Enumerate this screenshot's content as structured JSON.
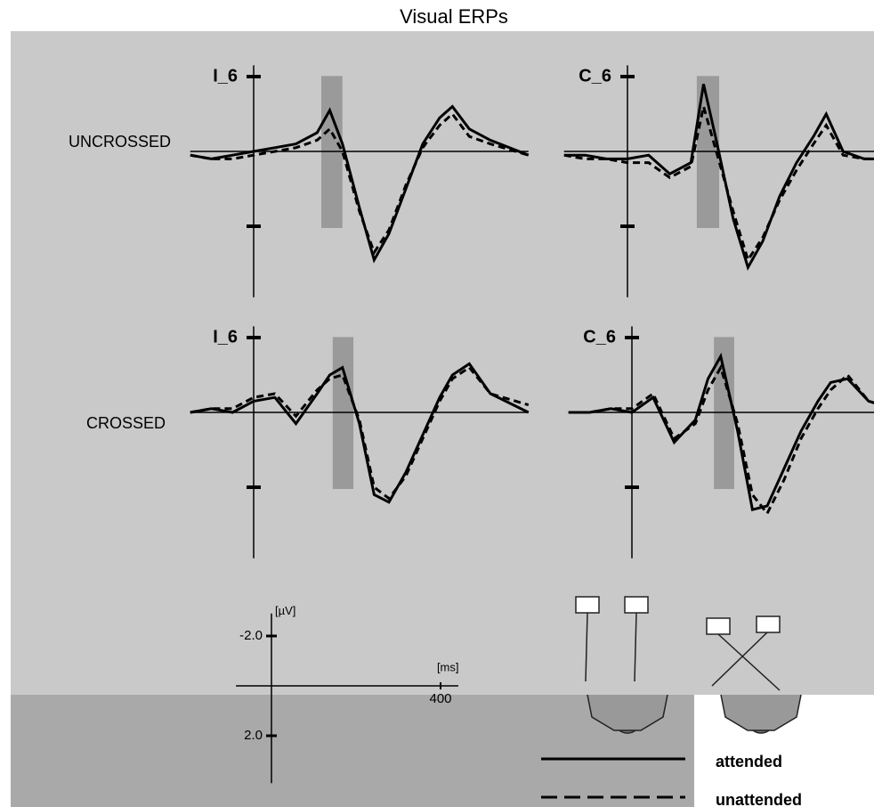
{
  "title": "Visual ERPs",
  "row_labels": [
    "UNCROSSED",
    "CROSSED"
  ],
  "chart_data": [
    {
      "type": "line",
      "title": "I_6",
      "xlim": [
        -150,
        650
      ],
      "ylim": [
        -2.3,
        3.9
      ],
      "yticks": [
        -2,
        2
      ],
      "highlight": [
        160,
        210
      ],
      "x": [
        -150,
        -100,
        -50,
        0,
        50,
        100,
        150,
        180,
        210,
        250,
        285,
        320,
        360,
        400,
        440,
        470,
        510,
        560,
        650
      ],
      "series": [
        {
          "name": "attended",
          "color": "#000000",
          "style": "solid",
          "values": [
            0.1,
            0.2,
            0.1,
            0,
            -0.1,
            -0.2,
            -0.5,
            -1.1,
            -0.2,
            1.5,
            2.9,
            2.2,
            1.0,
            -0.2,
            -0.9,
            -1.2,
            -0.6,
            -0.3,
            0.1
          ]
        },
        {
          "name": "unattended",
          "color": "#000000",
          "style": "dashed",
          "values": [
            0.1,
            0.2,
            0.2,
            0.1,
            0,
            -0.1,
            -0.3,
            -0.6,
            0,
            1.6,
            2.7,
            2.1,
            0.9,
            -0.1,
            -0.7,
            -1.0,
            -0.4,
            -0.2,
            0.1
          ]
        }
      ]
    },
    {
      "type": "line",
      "title": "C_6",
      "xlim": [
        -150,
        650
      ],
      "ylim": [
        -2.3,
        3.9
      ],
      "yticks": [
        -2,
        2
      ],
      "highlight": [
        164,
        217
      ],
      "x": [
        -150,
        -100,
        -50,
        0,
        50,
        100,
        150,
        180,
        210,
        250,
        285,
        320,
        360,
        400,
        440,
        470,
        510,
        560,
        650
      ],
      "series": [
        {
          "name": "attended",
          "color": "#000000",
          "style": "solid",
          "values": [
            0.1,
            0.1,
            0.2,
            0.2,
            0.1,
            0.6,
            0.3,
            -1.8,
            -0.3,
            1.8,
            3.1,
            2.4,
            1.2,
            0.3,
            -0.4,
            -1.0,
            0,
            0.2,
            0.2
          ]
        },
        {
          "name": "unattended",
          "color": "#000000",
          "style": "dashed",
          "values": [
            0.1,
            0.2,
            0.2,
            0.3,
            0.3,
            0.7,
            0.4,
            -1.2,
            0,
            1.6,
            2.9,
            2.3,
            1.3,
            0.5,
            -0.2,
            -0.7,
            0.1,
            0.2,
            0.2
          ]
        }
      ]
    },
    {
      "type": "line",
      "title": "I_6",
      "xlim": [
        -150,
        650
      ],
      "ylim": [
        -2.3,
        3.9
      ],
      "yticks": [
        -2,
        2
      ],
      "highlight": [
        187,
        236
      ],
      "x": [
        -150,
        -100,
        -50,
        0,
        50,
        100,
        150,
        180,
        210,
        250,
        285,
        320,
        360,
        400,
        440,
        470,
        510,
        560,
        650
      ],
      "series": [
        {
          "name": "attended",
          "color": "#000000",
          "style": "solid",
          "values": [
            0,
            -0.1,
            0,
            -0.3,
            -0.4,
            0.3,
            -0.5,
            -1.0,
            -1.2,
            0.3,
            2.2,
            2.4,
            1.6,
            0.6,
            -0.4,
            -1.0,
            -1.3,
            -0.5,
            0
          ]
        },
        {
          "name": "unattended",
          "color": "#000000",
          "style": "dashed",
          "values": [
            0,
            -0.1,
            -0.1,
            -0.4,
            -0.5,
            0.1,
            -0.6,
            -0.9,
            -1.0,
            0.2,
            2.0,
            2.3,
            1.7,
            0.7,
            -0.3,
            -0.9,
            -1.2,
            -0.5,
            -0.2
          ]
        }
      ]
    },
    {
      "type": "line",
      "title": "C_6",
      "xlim": [
        -150,
        650
      ],
      "ylim": [
        -2.3,
        3.9
      ],
      "yticks": [
        -2,
        2
      ],
      "highlight": [
        194,
        242
      ],
      "x": [
        -150,
        -100,
        -50,
        0,
        50,
        100,
        150,
        180,
        210,
        250,
        285,
        320,
        360,
        400,
        440,
        470,
        510,
        560,
        650
      ],
      "series": [
        {
          "name": "attended",
          "color": "#000000",
          "style": "solid",
          "values": [
            0,
            0,
            -0.1,
            0,
            -0.4,
            0.8,
            0.2,
            -0.9,
            -1.5,
            0.5,
            2.6,
            2.5,
            1.5,
            0.5,
            -0.3,
            -0.8,
            -0.9,
            -0.3,
            0
          ]
        },
        {
          "name": "unattended",
          "color": "#000000",
          "style": "dashed",
          "values": [
            0,
            0,
            -0.1,
            -0.1,
            -0.5,
            0.7,
            0.3,
            -0.6,
            -1.2,
            0.3,
            2.2,
            2.7,
            1.8,
            0.7,
            -0.1,
            -0.6,
            -1.0,
            -0.3,
            0
          ]
        }
      ]
    }
  ],
  "scale_bar": {
    "y_label": "[µV]",
    "x_label": "[ms]",
    "xlim": [
      -84,
      442
    ],
    "ylim": [
      -2.9,
      3.9
    ],
    "yticks": [
      {
        "value": -2,
        "label": "-2.0"
      },
      {
        "value": 2,
        "label": "2.0"
      }
    ],
    "xticks": [
      400
    ]
  }
}
